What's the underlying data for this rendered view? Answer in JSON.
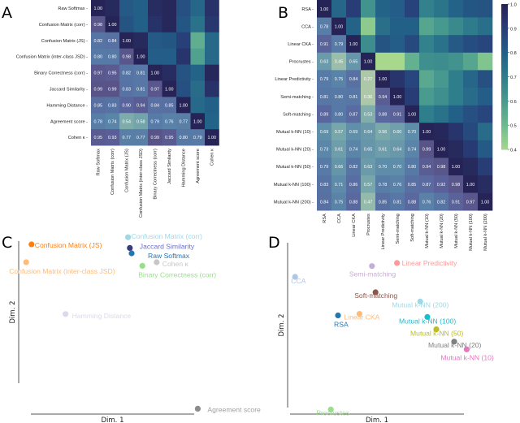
{
  "panels": {
    "a": "A",
    "b": "B",
    "c": "C",
    "d": "D"
  },
  "chart_data": [
    {
      "type": "heatmap",
      "panel": "A",
      "labels": [
        "Raw Softmax",
        "Confusion Matrix (corr)",
        "Confusion Matrix (JS)",
        "Confusion Matrix (inter-class JSD)",
        "Binary Correctness (corr)",
        "Jaccard Similarity",
        "Hamming Distance",
        "Agreement score",
        "Cohen κ"
      ],
      "lower_triangle": [
        [
          1.0
        ],
        [
          0.98,
          1.0
        ],
        [
          0.82,
          0.84,
          1.0
        ],
        [
          0.8,
          0.8,
          0.98,
          1.0
        ],
        [
          0.97,
          0.95,
          0.82,
          0.81,
          1.0
        ],
        [
          0.99,
          0.99,
          0.83,
          0.81,
          0.97,
          1.0
        ],
        [
          0.85,
          0.83,
          0.9,
          0.94,
          0.84,
          0.85,
          1.0
        ],
        [
          0.78,
          0.74,
          0.54,
          0.58,
          0.79,
          0.76,
          0.77,
          1.0
        ],
        [
          0.95,
          0.93,
          0.77,
          0.77,
          0.99,
          0.95,
          0.8,
          0.79,
          1.0
        ]
      ],
      "value_range": [
        0.4,
        1.0
      ]
    },
    {
      "type": "heatmap",
      "panel": "B",
      "labels": [
        "RSA",
        "CCA",
        "Linear CKA",
        "Procrustes",
        "Linear Predictivity",
        "Semi-matching",
        "Soft-matching",
        "Mutual k-NN (10)",
        "Mutual k-NN (20)",
        "Mutual k-NN (50)",
        "Mutual k-NN (100)",
        "Mutual k-NN (200)"
      ],
      "lower_triangle": [
        [
          1.0
        ],
        [
          0.78,
          1.0
        ],
        [
          0.91,
          0.79,
          1.0
        ],
        [
          0.63,
          0.45,
          0.65,
          1.0
        ],
        [
          0.79,
          0.75,
          0.84,
          0.27,
          1.0
        ],
        [
          0.81,
          0.8,
          0.81,
          0.36,
          0.94,
          1.0
        ],
        [
          0.89,
          0.8,
          0.87,
          0.53,
          0.88,
          0.91,
          1.0
        ],
        [
          0.69,
          0.57,
          0.69,
          0.64,
          0.56,
          0.6,
          0.7,
          1.0
        ],
        [
          0.73,
          0.61,
          0.74,
          0.65,
          0.61,
          0.64,
          0.74,
          0.99,
          1.0
        ],
        [
          0.79,
          0.66,
          0.82,
          0.63,
          0.7,
          0.7,
          0.8,
          0.94,
          0.98,
          1.0
        ],
        [
          0.83,
          0.71,
          0.86,
          0.57,
          0.78,
          0.76,
          0.85,
          0.87,
          0.92,
          0.98,
          1.0
        ],
        [
          0.84,
          0.75,
          0.88,
          0.47,
          0.85,
          0.81,
          0.88,
          0.76,
          0.82,
          0.91,
          0.97,
          1.0
        ]
      ],
      "colorbar": {
        "ticks": [
          "0.4",
          "0.5",
          "0.6",
          "0.7",
          "0.8",
          "0.9",
          "1.0"
        ],
        "range": [
          0.4,
          1.0
        ]
      },
      "colormap": [
        "#a8d88c",
        "#6fbb8f",
        "#4a9b8f",
        "#2f7e8c",
        "#236088",
        "#28407a",
        "#262456"
      ]
    },
    {
      "type": "scatter",
      "panel": "C",
      "xlabel": "Dim. 1",
      "ylabel": "Dim. 2",
      "points": [
        {
          "label": "Confusion Matrix (JS)",
          "x": 0.4,
          "y": 9.5,
          "color": "#ff7f0e"
        },
        {
          "label": "Confusion Matrix (inter-class JSD)",
          "x": 0.1,
          "y": 8.5,
          "color": "#ffbb78"
        },
        {
          "label": "Confusion Matrix (corr)",
          "x": 5.8,
          "y": 9.9,
          "color": "#9edae5"
        },
        {
          "label": "Jaccard Similarity",
          "x": 5.9,
          "y": 9.3,
          "color": "#393b79",
          "label_color": "#6b6ecf"
        },
        {
          "label": "Raw Softmax",
          "x": 6.0,
          "y": 9.0,
          "color": "#1f77b4"
        },
        {
          "label": "Cohen κ",
          "x": 7.4,
          "y": 8.5,
          "color": "#c7c7c7"
        },
        {
          "label": "Binary Correctness (corr)",
          "x": 6.6,
          "y": 8.3,
          "color": "#98df8a"
        },
        {
          "label": "Hamming Distance",
          "x": 2.3,
          "y": 5.6,
          "color": "#dadaeb"
        },
        {
          "label": "Agreement score",
          "x": 9.7,
          "y": 0.3,
          "color": "#8c8c8c",
          "label_color": "#a0a0a0"
        }
      ]
    },
    {
      "type": "scatter",
      "panel": "D",
      "xlabel": "Dim. 1",
      "ylabel": "Dim. 2",
      "points": [
        {
          "label": "Linear Predictivity",
          "x": 6.3,
          "y": 9.9,
          "color": "#ff9896"
        },
        {
          "label": "Semi-matching",
          "x": 4.9,
          "y": 9.7,
          "color": "#c5b0d5"
        },
        {
          "label": "CCA",
          "x": 0.6,
          "y": 9.0,
          "color": "#aec7e8"
        },
        {
          "label": "Soft-matching",
          "x": 5.1,
          "y": 8.0,
          "color": "#8c564b"
        },
        {
          "label": "Mutual k-NN (200)",
          "x": 7.6,
          "y": 7.4,
          "color": "#9edae5"
        },
        {
          "label": "Linear CKA",
          "x": 4.2,
          "y": 6.6,
          "color": "#ffbb78"
        },
        {
          "label": "RSA",
          "x": 3.0,
          "y": 6.5,
          "color": "#1f77b4"
        },
        {
          "label": "Mutual k-NN (100)",
          "x": 8.0,
          "y": 6.4,
          "color": "#17becf"
        },
        {
          "label": "Mutual k-NN (50)",
          "x": 8.5,
          "y": 5.6,
          "color": "#bcbd22"
        },
        {
          "label": "Mutual k-NN (20)",
          "x": 9.5,
          "y": 4.8,
          "color": "#7f7f7f"
        },
        {
          "label": "Mutual k-NN (10)",
          "x": 10.2,
          "y": 4.3,
          "color": "#e377c2"
        },
        {
          "label": "Procrustes",
          "x": 2.6,
          "y": 0.4,
          "color": "#98df8a"
        }
      ]
    }
  ]
}
